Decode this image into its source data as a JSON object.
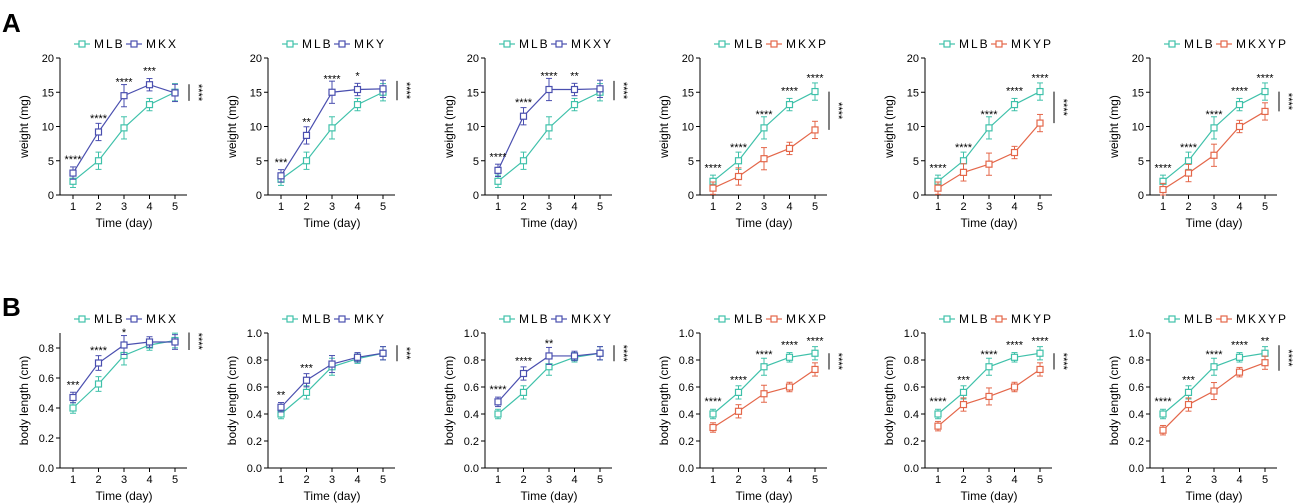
{
  "panel_labels": [
    "A",
    "B"
  ],
  "colors": {
    "MLB": "#3fc1aa",
    "MKX": "#4a4faf",
    "MKY": "#4a4faf",
    "MKXY": "#4a4faf",
    "MKXP": "#e4674a",
    "MKYP": "#e4674a",
    "MKXYP": "#e4674a"
  },
  "chart_data": [
    {
      "type": "line",
      "panel": "A",
      "xlabel": "Time (day)",
      "ylabel": "weight (mg)",
      "x": [
        1,
        2,
        3,
        4,
        5
      ],
      "yticks": [
        0,
        5,
        10,
        15,
        20
      ],
      "ylim": [
        0,
        20
      ],
      "series": [
        {
          "name": "MLB",
          "values": [
            2.0,
            5.0,
            9.8,
            13.2,
            15.0
          ]
        },
        {
          "name": "MKX",
          "values": [
            3.2,
            9.2,
            14.5,
            16.1,
            14.9
          ]
        }
      ],
      "annotations": [
        "****",
        "****",
        "****",
        "***",
        ""
      ],
      "bracket": "****"
    },
    {
      "type": "line",
      "panel": "A",
      "xlabel": "Time (day)",
      "ylabel": "weight (mg)",
      "x": [
        1,
        2,
        3,
        4,
        5
      ],
      "yticks": [
        0,
        5,
        10,
        15,
        20
      ],
      "ylim": [
        0,
        20
      ],
      "series": [
        {
          "name": "MLB",
          "values": [
            2.3,
            5.0,
            9.8,
            13.2,
            15.0
          ]
        },
        {
          "name": "MKY",
          "values": [
            2.8,
            8.7,
            15.0,
            15.4,
            15.5
          ]
        }
      ],
      "annotations": [
        "***",
        "**",
        "****",
        "*",
        ""
      ],
      "bracket": "****"
    },
    {
      "type": "line",
      "panel": "A",
      "xlabel": "Time (day)",
      "ylabel": "weight (mg)",
      "x": [
        1,
        2,
        3,
        4,
        5
      ],
      "yticks": [
        0,
        5,
        10,
        15,
        20
      ],
      "ylim": [
        0,
        20
      ],
      "series": [
        {
          "name": "MLB",
          "values": [
            2.0,
            5.0,
            9.8,
            13.2,
            15.0
          ]
        },
        {
          "name": "MKXY",
          "values": [
            3.6,
            11.5,
            15.4,
            15.4,
            15.5
          ]
        }
      ],
      "annotations": [
        "****",
        "****",
        "****",
        "**",
        ""
      ],
      "bracket": "****"
    },
    {
      "type": "line",
      "panel": "A",
      "xlabel": "Time (day)",
      "ylabel": "weight (mg)",
      "x": [
        1,
        2,
        3,
        4,
        5
      ],
      "yticks": [
        0,
        5,
        10,
        15,
        20
      ],
      "ylim": [
        0,
        20
      ],
      "series": [
        {
          "name": "MLB",
          "values": [
            2.0,
            5.0,
            9.8,
            13.2,
            15.1
          ]
        },
        {
          "name": "MKXP",
          "values": [
            1.0,
            2.7,
            5.3,
            6.8,
            9.5
          ]
        }
      ],
      "annotations": [
        "****",
        "****",
        "****",
        "****",
        "****"
      ],
      "bracket": "****"
    },
    {
      "type": "line",
      "panel": "A",
      "xlabel": "Time (day)",
      "ylabel": "weight (mg)",
      "x": [
        1,
        2,
        3,
        4,
        5
      ],
      "yticks": [
        0,
        5,
        10,
        15,
        20
      ],
      "ylim": [
        0,
        20
      ],
      "series": [
        {
          "name": "MLB",
          "values": [
            2.0,
            5.0,
            9.8,
            13.2,
            15.1
          ]
        },
        {
          "name": "MKYP",
          "values": [
            1.0,
            3.3,
            4.5,
            6.2,
            10.5
          ]
        }
      ],
      "annotations": [
        "****",
        "****",
        "****",
        "****",
        "****"
      ],
      "bracket": "****"
    },
    {
      "type": "line",
      "panel": "A",
      "xlabel": "Time (day)",
      "ylabel": "weight (mg)",
      "x": [
        1,
        2,
        3,
        4,
        5
      ],
      "yticks": [
        0,
        5,
        10,
        15,
        20
      ],
      "ylim": [
        0,
        20
      ],
      "series": [
        {
          "name": "MLB",
          "values": [
            2.0,
            5.0,
            9.8,
            13.2,
            15.1
          ]
        },
        {
          "name": "MKXYP",
          "values": [
            0.8,
            3.2,
            5.8,
            10.0,
            12.2
          ]
        }
      ],
      "annotations": [
        "****",
        "****",
        "****",
        "****",
        "****"
      ],
      "bracket": "****"
    },
    {
      "type": "line",
      "panel": "B",
      "xlabel": "Time (day)",
      "ylabel": "body length (cm)",
      "x": [
        1,
        2,
        3,
        4,
        5
      ],
      "yticks": [
        0.0,
        0.2,
        0.4,
        0.6,
        0.8
      ],
      "ylim": [
        0,
        0.9
      ],
      "series": [
        {
          "name": "MLB",
          "values": [
            0.4,
            0.56,
            0.75,
            0.82,
            0.85
          ]
        },
        {
          "name": "MKX",
          "values": [
            0.47,
            0.7,
            0.82,
            0.84,
            0.84
          ]
        }
      ],
      "annotations": [
        "***",
        "****",
        "*",
        "",
        ""
      ],
      "bracket": "****"
    },
    {
      "type": "line",
      "panel": "B",
      "xlabel": "Time (day)",
      "ylabel": "body length (cm)",
      "x": [
        1,
        2,
        3,
        4,
        5
      ],
      "yticks": [
        0.0,
        0.2,
        0.4,
        0.6,
        0.8,
        1.0
      ],
      "ylim": [
        0,
        1.0
      ],
      "series": [
        {
          "name": "MLB",
          "values": [
            0.4,
            0.56,
            0.75,
            0.81,
            0.85
          ]
        },
        {
          "name": "MKY",
          "values": [
            0.45,
            0.65,
            0.77,
            0.82,
            0.85
          ]
        }
      ],
      "annotations": [
        "**",
        "***",
        "",
        "",
        ""
      ],
      "bracket": "***"
    },
    {
      "type": "line",
      "panel": "B",
      "xlabel": "Time (day)",
      "ylabel": "body length (cm)",
      "x": [
        1,
        2,
        3,
        4,
        5
      ],
      "yticks": [
        0.0,
        0.2,
        0.4,
        0.6,
        0.8,
        1.0
      ],
      "ylim": [
        0,
        1.0
      ],
      "series": [
        {
          "name": "MLB",
          "values": [
            0.4,
            0.56,
            0.75,
            0.82,
            0.85
          ]
        },
        {
          "name": "MKXY",
          "values": [
            0.49,
            0.7,
            0.83,
            0.83,
            0.85
          ]
        }
      ],
      "annotations": [
        "****",
        "****",
        "**",
        "",
        ""
      ],
      "bracket": "****"
    },
    {
      "type": "line",
      "panel": "B",
      "xlabel": "Time (day)",
      "ylabel": "body length (cm)",
      "x": [
        1,
        2,
        3,
        4,
        5
      ],
      "yticks": [
        0.0,
        0.2,
        0.4,
        0.6,
        0.8,
        1.0
      ],
      "ylim": [
        0,
        1.0
      ],
      "series": [
        {
          "name": "MLB",
          "values": [
            0.4,
            0.56,
            0.75,
            0.82,
            0.85
          ]
        },
        {
          "name": "MKXP",
          "values": [
            0.3,
            0.42,
            0.55,
            0.6,
            0.73
          ]
        }
      ],
      "annotations": [
        "****",
        "****",
        "****",
        "****",
        "****"
      ],
      "bracket": "****"
    },
    {
      "type": "line",
      "panel": "B",
      "xlabel": "Time (day)",
      "ylabel": "body length (cm)",
      "x": [
        1,
        2,
        3,
        4,
        5
      ],
      "yticks": [
        0.0,
        0.2,
        0.4,
        0.6,
        0.8,
        1.0
      ],
      "ylim": [
        0,
        1.0
      ],
      "series": [
        {
          "name": "MLB",
          "values": [
            0.4,
            0.56,
            0.75,
            0.82,
            0.85
          ]
        },
        {
          "name": "MKYP",
          "values": [
            0.31,
            0.47,
            0.53,
            0.6,
            0.73
          ]
        }
      ],
      "annotations": [
        "****",
        "***",
        "****",
        "****",
        "****"
      ],
      "bracket": "****"
    },
    {
      "type": "line",
      "panel": "B",
      "xlabel": "Time (day)",
      "ylabel": "body length (cm)",
      "x": [
        1,
        2,
        3,
        4,
        5
      ],
      "yticks": [
        0.0,
        0.2,
        0.4,
        0.6,
        0.8,
        1.0
      ],
      "ylim": [
        0,
        1.0
      ],
      "series": [
        {
          "name": "MLB",
          "values": [
            0.4,
            0.56,
            0.75,
            0.82,
            0.85
          ]
        },
        {
          "name": "MKXYP",
          "values": [
            0.28,
            0.47,
            0.57,
            0.71,
            0.78
          ]
        }
      ],
      "annotations": [
        "****",
        "***",
        "****",
        "****",
        "**"
      ],
      "bracket": "****"
    }
  ]
}
